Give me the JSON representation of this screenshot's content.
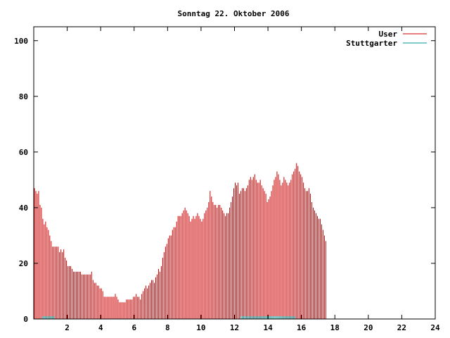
{
  "chart_data": {
    "type": "bar",
    "title": "Sonntag 22. Oktober 2006",
    "xlabel": "",
    "ylabel": "",
    "xlim": [
      0,
      24
    ],
    "ylim": [
      0,
      105
    ],
    "xticks": [
      2,
      4,
      6,
      8,
      10,
      12,
      14,
      16,
      18,
      20,
      22,
      24
    ],
    "yticks": [
      0,
      20,
      40,
      60,
      80,
      100
    ],
    "legend_position": "top-right",
    "grid": false,
    "series": [
      {
        "name": "User",
        "color": "#cc0000",
        "x_start": 0,
        "x_step": 0.0833333,
        "values": [
          47,
          46,
          45,
          46,
          41,
          40,
          36,
          34,
          35,
          33,
          32,
          30,
          28,
          26,
          26,
          26,
          26,
          26,
          24,
          25,
          24,
          25,
          22,
          21,
          19,
          19,
          19,
          18,
          17,
          17,
          17,
          17,
          17,
          17,
          16,
          16,
          16,
          16,
          16,
          16,
          16,
          17,
          14,
          13,
          13,
          12,
          12,
          11,
          11,
          10,
          8,
          8,
          8,
          8,
          8,
          8,
          8,
          8,
          9,
          8,
          7,
          6,
          6,
          6,
          6,
          6,
          7,
          7,
          7,
          7,
          7,
          8,
          8,
          9,
          8,
          8,
          7,
          9,
          10,
          11,
          12,
          11,
          12,
          13,
          14,
          14,
          13,
          15,
          16,
          18,
          17,
          19,
          22,
          24,
          26,
          27,
          29,
          30,
          30,
          32,
          33,
          33,
          35,
          37,
          37,
          37,
          38,
          39,
          40,
          39,
          38,
          37,
          35,
          36,
          37,
          36,
          37,
          38,
          37,
          36,
          35,
          36,
          38,
          39,
          40,
          42,
          46,
          44,
          42,
          41,
          41,
          40,
          41,
          41,
          40,
          39,
          38,
          37,
          38,
          38,
          40,
          42,
          44,
          47,
          49,
          48,
          49,
          45,
          46,
          47,
          47,
          46,
          47,
          48,
          50,
          51,
          50,
          51,
          52,
          50,
          49,
          49,
          50,
          48,
          47,
          46,
          45,
          42,
          43,
          44,
          46,
          48,
          50,
          51,
          53,
          52,
          50,
          48,
          49,
          51,
          50,
          49,
          48,
          49,
          50,
          52,
          53,
          54,
          56,
          55,
          53,
          52,
          51,
          49,
          47,
          46,
          46,
          47,
          45,
          42,
          40,
          39,
          38,
          37,
          36,
          36,
          34,
          32,
          30,
          28
        ]
      },
      {
        "name": "Stuttgarter",
        "color": "#009999",
        "x_start": 0,
        "x_step": 0.0833333,
        "values": [
          0,
          0,
          0,
          0,
          0,
          0,
          1,
          1,
          1,
          1,
          1,
          1,
          1,
          1,
          1,
          0,
          0,
          0,
          0,
          0,
          0,
          0,
          0,
          0,
          0,
          0,
          0,
          0,
          0,
          0,
          0,
          0,
          0,
          0,
          0,
          0,
          0,
          0,
          0,
          0,
          0,
          0,
          0,
          0,
          0,
          0,
          0,
          0,
          0,
          0,
          0,
          0,
          0,
          0,
          0,
          0,
          0,
          0,
          0,
          0,
          0,
          0,
          0,
          0,
          0,
          0,
          0,
          0,
          0,
          0,
          0,
          0,
          0,
          0,
          0,
          0,
          0,
          0,
          0,
          0,
          0,
          0,
          0,
          0,
          0,
          0,
          0,
          0,
          0,
          0,
          0,
          0,
          0,
          0,
          0,
          0,
          0,
          0,
          0,
          0,
          0,
          0,
          0,
          0,
          0,
          0,
          0,
          0,
          0,
          0,
          0,
          0,
          0,
          0,
          0,
          0,
          0,
          0,
          0,
          0,
          0,
          0,
          0,
          0,
          0,
          0,
          0,
          0,
          0,
          0,
          0,
          0,
          0,
          0,
          0,
          0,
          0,
          0,
          0,
          0,
          0,
          0,
          0,
          0,
          0,
          0,
          0,
          0,
          1,
          1,
          1,
          1,
          1,
          1,
          1,
          1,
          1,
          1,
          1,
          1,
          1,
          1,
          1,
          1,
          1,
          1,
          1,
          1,
          1,
          1,
          1,
          1,
          1,
          1,
          1,
          1,
          1,
          1,
          1,
          1,
          1,
          1,
          1,
          1,
          1,
          1,
          1,
          1,
          0,
          0,
          0,
          0,
          0,
          0,
          0,
          0,
          0,
          0,
          0,
          0,
          0,
          0,
          0,
          0,
          0,
          0,
          0,
          0,
          0,
          0,
          0,
          0
        ]
      }
    ]
  }
}
